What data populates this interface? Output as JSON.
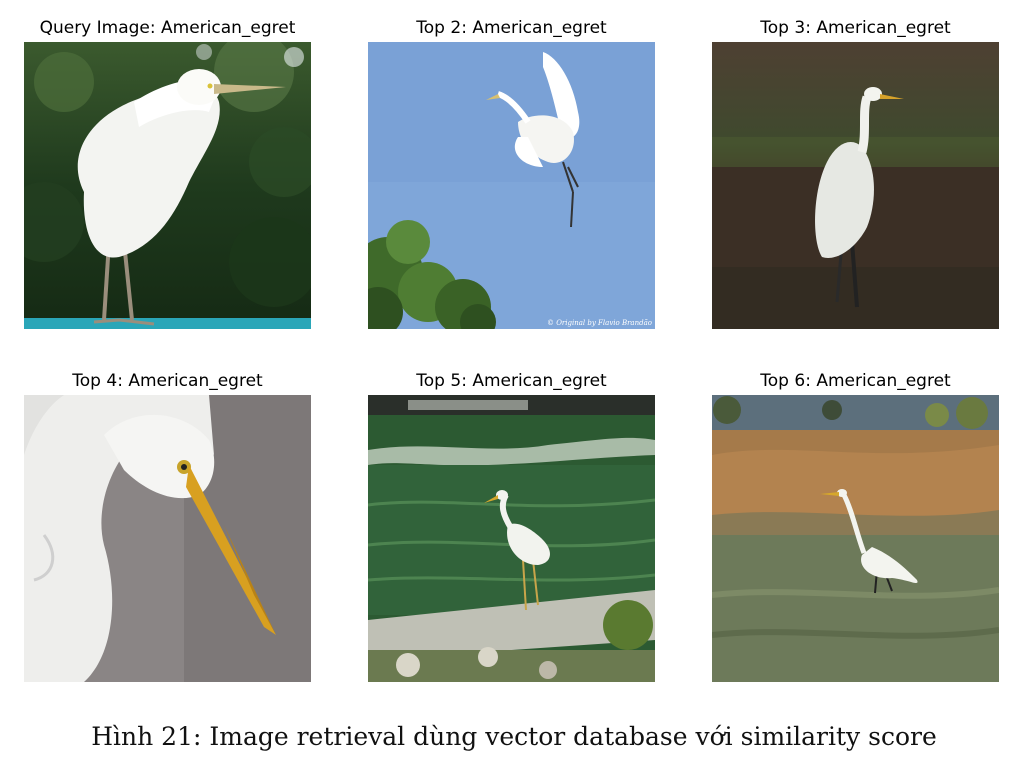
{
  "panels": [
    {
      "title": "Query Image: American_egret"
    },
    {
      "title": "Top 2: American_egret",
      "watermark": "© Original by Flavio Brandão"
    },
    {
      "title": "Top 3: American_egret"
    },
    {
      "title": "Top 4: American_egret"
    },
    {
      "title": "Top 5: American_egret"
    },
    {
      "title": "Top 6: American_egret"
    }
  ],
  "caption": "Hình 21: Image retrieval dùng vector database với similarity score"
}
